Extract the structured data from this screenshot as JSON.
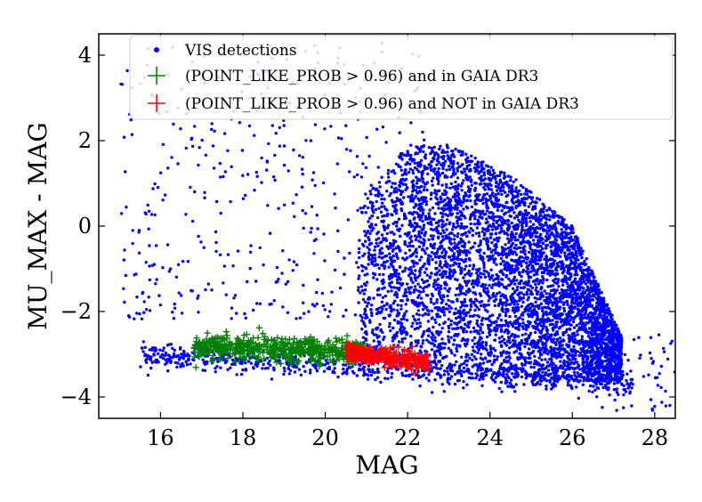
{
  "chart_data": {
    "type": "scatter",
    "title": "",
    "xlabel": "MAG",
    "ylabel": "MU_MAX - MAG",
    "xlim": [
      14.5,
      28.5
    ],
    "ylim": [
      -4.5,
      4.5
    ],
    "xticks": [
      16,
      18,
      20,
      22,
      24,
      26,
      28
    ],
    "yticks": [
      -4,
      -2,
      0,
      2,
      4
    ],
    "xtick_labels": [
      "16",
      "18",
      "20",
      "22",
      "24",
      "26",
      "28"
    ],
    "ytick_labels": [
      "−4",
      "−2",
      "0",
      "2",
      "4"
    ],
    "grid": false,
    "legend_position": "top-center",
    "series": [
      {
        "name": "VIS detections",
        "marker": "dot",
        "color": "#0000ff",
        "components": [
          {
            "region": "main-cloud",
            "x_range": [
              20.8,
              27.2
            ],
            "y_top_at_x": [
              [
                20.8,
                0.5
              ],
              [
                22.0,
                1.9
              ],
              [
                23.0,
                1.9
              ],
              [
                24.5,
                1.2
              ],
              [
                26.0,
                0.0
              ],
              [
                27.2,
                -2.6
              ]
            ],
            "y_bottom": -3.3,
            "count": 5200
          },
          {
            "region": "sparse-upper",
            "x_range": [
              15.0,
              22.5
            ],
            "y_range": [
              -2.2,
              4.3
            ],
            "count": 450
          },
          {
            "region": "point-like-band",
            "x_range": [
              15.5,
              27.5
            ],
            "y_center": -3.0,
            "count": 700
          },
          {
            "region": "faint-tail",
            "x_range": [
              26.5,
              28.5
            ],
            "y_range": [
              -4.4,
              -2.5
            ],
            "count": 60
          }
        ]
      },
      {
        "name": "(POINT_LIKE_PROB > 0.96) and in GAIA DR3",
        "marker": "plus",
        "color": "#008000",
        "components": [
          {
            "region": "stellar-locus-bright",
            "x_range": [
              16.8,
              21.0
            ],
            "y_center_at_x": [
              [
                16.8,
                -2.8
              ],
              [
                21.0,
                -2.95
              ]
            ],
            "y_spread": 0.28,
            "count": 520
          }
        ]
      },
      {
        "name": "(POINT_LIKE_PROB > 0.96) and NOT in GAIA DR3",
        "marker": "plus",
        "color": "#ff0000",
        "components": [
          {
            "region": "stellar-locus-faint",
            "x_range": [
              20.5,
              22.5
            ],
            "y_center_at_x": [
              [
                20.5,
                -2.95
              ],
              [
                22.5,
                -3.2
              ]
            ],
            "y_spread": 0.2,
            "count": 320
          }
        ]
      }
    ]
  }
}
